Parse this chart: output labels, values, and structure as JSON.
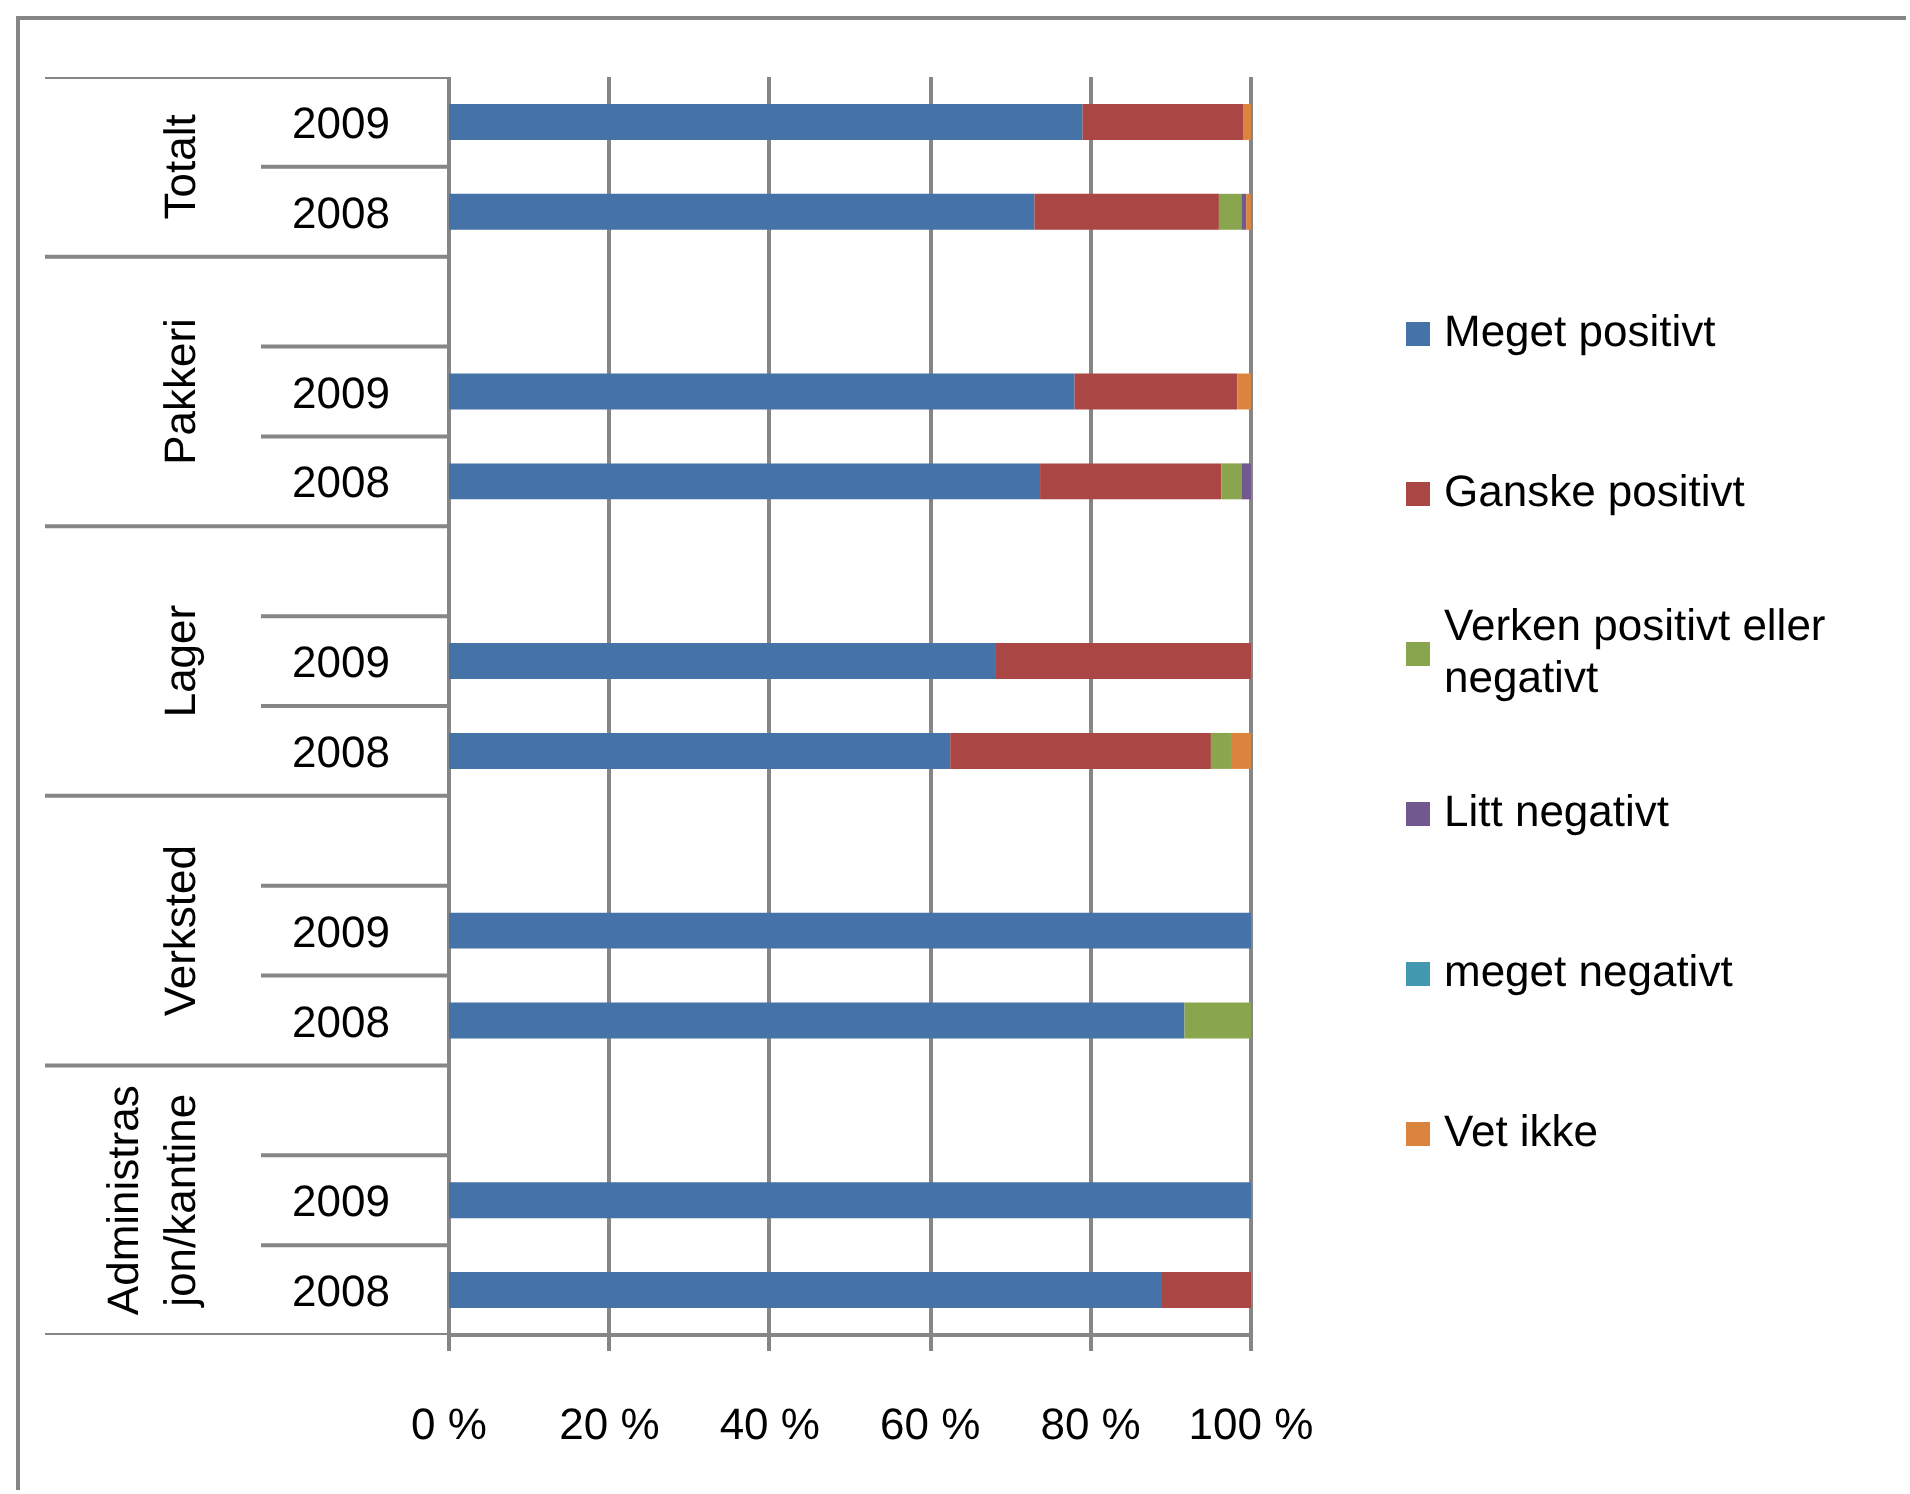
{
  "chart_data": {
    "type": "bar",
    "orientation": "horizontal",
    "stacked": true,
    "categories": [
      "2009",
      "2008",
      null,
      "2009",
      "2008",
      null,
      "2009",
      "2008",
      null,
      "2009",
      "2008",
      null,
      "2009",
      "2008"
    ],
    "annotations": [
      "Totalt",
      "Pakkeri",
      "Lager",
      "Verksted",
      "Administrasjon/kantine"
    ],
    "series": [
      {
        "name": "Meget positivt",
        "color": "#4572a7",
        "values": [
          79,
          73,
          null,
          78,
          73.7,
          null,
          68.2,
          62.5,
          null,
          100,
          91.7,
          null,
          100,
          88.9
        ]
      },
      {
        "name": "Ganske positivt",
        "color": "#aa4643",
        "values": [
          20,
          23,
          null,
          20.3,
          22.6,
          null,
          31.8,
          32.5,
          null,
          0,
          0,
          null,
          0,
          11.1
        ]
      },
      {
        "name": "Verken positivt eller negativt",
        "color": "#89a54e",
        "values": [
          0,
          2.8,
          null,
          0,
          2.5,
          null,
          0,
          2.5,
          null,
          0,
          8.3,
          null,
          0,
          0
        ]
      },
      {
        "name": "Litt negativt",
        "color": "#71588f",
        "values": [
          0,
          0.6,
          null,
          0,
          1.2,
          null,
          0,
          0,
          null,
          0,
          0,
          null,
          0,
          0
        ]
      },
      {
        "name": "meget negativt",
        "color": "#4198af",
        "values": [
          0,
          0,
          null,
          0,
          0,
          null,
          0,
          0,
          null,
          0,
          0,
          null,
          0,
          0
        ]
      },
      {
        "name": "Vet ikke",
        "color": "#db843d",
        "values": [
          1,
          0.6,
          null,
          1.7,
          0,
          null,
          0,
          2.5,
          null,
          0,
          0,
          null,
          0,
          0
        ]
      }
    ],
    "xlim": [
      0,
      100
    ],
    "xticks": [
      {
        "value": 0,
        "label": "0 %"
      },
      {
        "value": 20,
        "label": "20 %"
      },
      {
        "value": 40,
        "label": "40 %"
      },
      {
        "value": 60,
        "label": "60 %"
      },
      {
        "value": 80,
        "label": "80 %"
      },
      {
        "value": 100,
        "label": "100 %"
      }
    ],
    "grid": "x",
    "legend": "right"
  }
}
